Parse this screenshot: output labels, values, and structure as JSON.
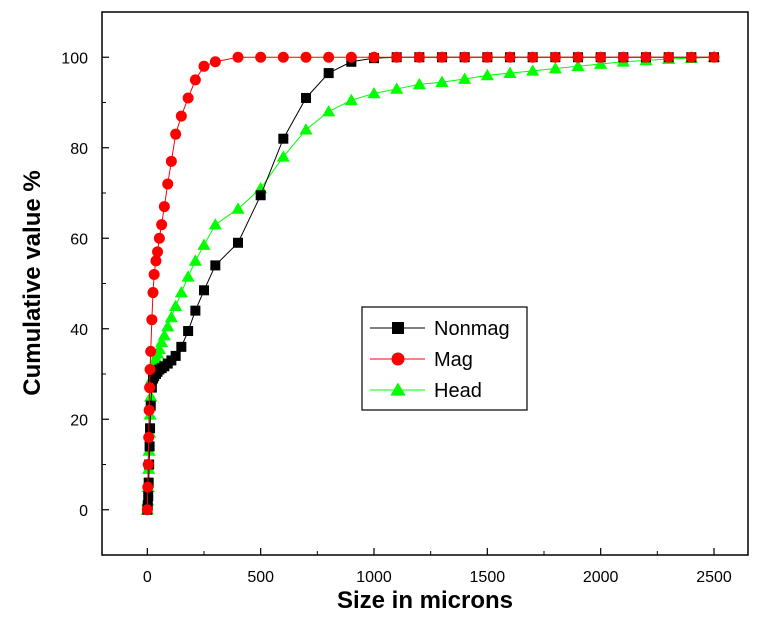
{
  "chart_data": {
    "type": "line",
    "title": "",
    "xlabel": "Size in microns",
    "ylabel": "Cumulative value %",
    "xlim": [
      -200,
      2650
    ],
    "ylim": [
      -10,
      110
    ],
    "xticks": [
      0,
      500,
      1000,
      1500,
      2000,
      2500
    ],
    "yticks": [
      0,
      20,
      40,
      60,
      80,
      100
    ],
    "grid": false,
    "legend_position": "center-right",
    "series": [
      {
        "name": "Nonmag",
        "color": "#000000",
        "marker": "square",
        "x": [
          0,
          2,
          4,
          6,
          8,
          10,
          12,
          15,
          20,
          25,
          30,
          38,
          45,
          53,
          63,
          75,
          90,
          106,
          125,
          150,
          180,
          212,
          250,
          300,
          400,
          500,
          600,
          700,
          800,
          900,
          1000,
          1100,
          1200,
          1300,
          1400,
          1500,
          1600,
          1700,
          1800,
          1900,
          2000,
          2100,
          2200,
          2300,
          2400,
          2500
        ],
        "y": [
          0,
          1,
          3,
          6,
          10,
          14,
          18,
          23,
          27,
          29,
          29.5,
          30,
          30.5,
          31,
          31.3,
          31.7,
          32.3,
          33,
          34,
          36,
          39.5,
          44,
          48.5,
          54,
          59,
          69.5,
          82,
          91,
          96.5,
          99,
          99.8,
          100,
          100,
          100,
          100,
          100,
          100,
          100,
          100,
          100,
          100,
          100,
          100,
          100,
          100,
          100
        ]
      },
      {
        "name": "Mag",
        "color": "#ff0000",
        "marker": "circle",
        "x": [
          0,
          2,
          4,
          6,
          8,
          10,
          12,
          15,
          20,
          25,
          30,
          38,
          45,
          53,
          63,
          75,
          90,
          106,
          125,
          150,
          180,
          212,
          250,
          300,
          400,
          500,
          600,
          700,
          800,
          900,
          1000,
          1100,
          1200,
          1300,
          1400,
          1500,
          1600,
          1700,
          1800,
          1900,
          2000,
          2100,
          2200,
          2300,
          2400,
          2500
        ],
        "y": [
          0,
          5,
          10,
          16,
          22,
          27,
          31,
          35,
          42,
          48,
          52,
          55,
          57,
          60,
          63,
          67,
          72,
          77,
          83,
          87,
          91,
          95,
          98,
          99,
          100,
          100,
          100,
          100,
          100,
          100,
          100,
          100,
          100,
          100,
          100,
          100,
          100,
          100,
          100,
          100,
          100,
          100,
          100,
          100,
          100,
          100
        ]
      },
      {
        "name": "Head",
        "color": "#00ff00",
        "marker": "triangle",
        "x": [
          0,
          2,
          4,
          6,
          8,
          10,
          12,
          15,
          20,
          25,
          30,
          38,
          45,
          53,
          63,
          75,
          90,
          106,
          125,
          150,
          180,
          212,
          250,
          300,
          400,
          500,
          600,
          700,
          800,
          900,
          1000,
          1100,
          1200,
          1300,
          1400,
          1500,
          1600,
          1700,
          1800,
          1900,
          2000,
          2100,
          2200,
          2300,
          2400,
          2500
        ],
        "y": [
          0,
          2,
          5,
          9,
          13,
          17,
          21,
          25,
          29,
          31,
          32.5,
          33.5,
          34.5,
          35.5,
          37,
          38.5,
          40.5,
          42.5,
          45,
          48,
          51.5,
          55,
          58.5,
          63,
          66.5,
          71,
          78,
          84,
          88,
          90.5,
          92,
          93,
          94,
          94.5,
          95.2,
          96,
          96.5,
          97,
          97.5,
          98,
          98.5,
          99,
          99.3,
          99.6,
          99.8,
          100
        ]
      }
    ]
  }
}
